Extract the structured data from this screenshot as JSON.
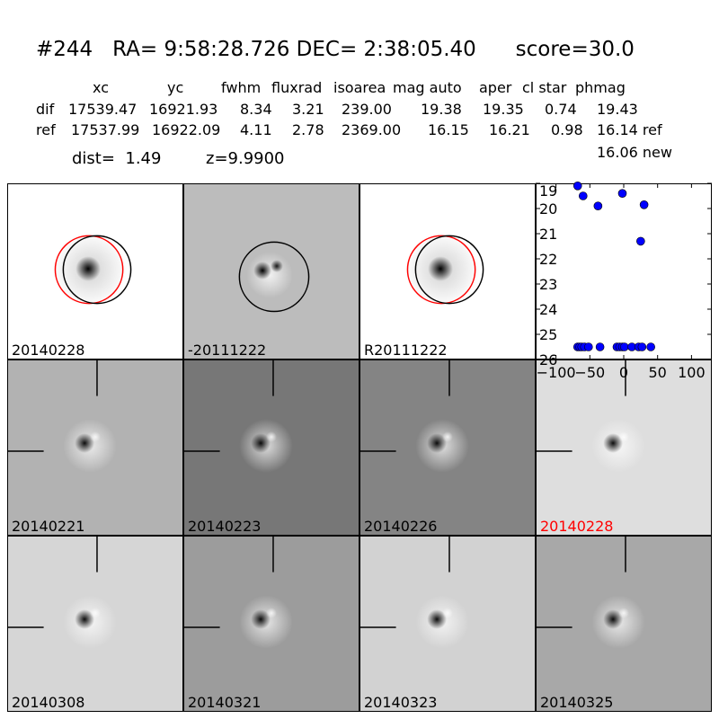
{
  "header": {
    "title": "#244   RA= 9:58:28.726 DEC= 2:38:05.40      score=30.0",
    "columns": [
      "xc",
      "yc",
      "fwhm",
      "fluxrad",
      "isoarea",
      "mag auto",
      "aper",
      "cl star",
      "phmag"
    ],
    "rows": [
      {
        "label": "dif",
        "values": [
          "17539.47",
          "16921.93",
          "8.34",
          "3.21",
          "239.00",
          "19.38",
          "19.35",
          "0.74",
          "19.43"
        ]
      },
      {
        "label": "ref",
        "values": [
          "17537.99",
          "16922.09",
          "4.11",
          "2.78",
          "2369.00",
          "16.15",
          "16.21",
          "0.98",
          "16.14 ref"
        ]
      }
    ],
    "dist": "dist=  1.49",
    "z": "z=9.9900",
    "new_mag": "16.06 new"
  },
  "panels": [
    {
      "label": "20140228",
      "bg": "#ffffff",
      "highlight": false
    },
    {
      "label": "-20111222",
      "bg": "#bcbcbc",
      "highlight": false
    },
    {
      "label": "R20111222",
      "bg": "#ffffff",
      "highlight": false
    },
    {
      "label": "20140221",
      "bg": "#b2b2b2",
      "highlight": false
    },
    {
      "label": "20140223",
      "bg": "#777777",
      "highlight": false
    },
    {
      "label": "20140226",
      "bg": "#848484",
      "highlight": false
    },
    {
      "label": "20140228",
      "bg": "#dedede",
      "highlight": true
    },
    {
      "label": "20140308",
      "bg": "#d6d6d6",
      "highlight": false
    },
    {
      "label": "20140321",
      "bg": "#9c9c9c",
      "highlight": false
    },
    {
      "label": "20140323",
      "bg": "#d2d2d2",
      "highlight": false
    },
    {
      "label": "20140325",
      "bg": "#a8a8a8",
      "highlight": false
    }
  ],
  "colors": {
    "highlight_label": "#ff0000",
    "point": "#0000ff",
    "circle_ref": "#ff0000",
    "circle": "#000000"
  },
  "chart_data": {
    "type": "scatter",
    "xlim": [
      -130,
      130
    ],
    "ylim": [
      26,
      19
    ],
    "xticks": [
      -100,
      -50,
      0,
      50,
      100
    ],
    "yticks": [
      19,
      20,
      21,
      22,
      23,
      24,
      25,
      26
    ],
    "xticklabels": [
      "−100",
      "−50",
      "0",
      "50",
      "100"
    ],
    "yticklabels": [
      "19",
      "20",
      "21",
      "22",
      "23",
      "24",
      "25",
      "26"
    ],
    "x": [
      -68,
      -60,
      -38,
      -2,
      30,
      25,
      -68,
      -65,
      -62,
      -58,
      -52,
      -35,
      -10,
      -6,
      -2,
      1,
      12,
      22,
      27,
      40
    ],
    "y": [
      19.1,
      19.5,
      19.9,
      19.4,
      19.85,
      21.3,
      25.5,
      25.5,
      25.5,
      25.5,
      25.5,
      25.5,
      25.5,
      25.5,
      25.5,
      25.5,
      25.5,
      25.5,
      25.5,
      25.5
    ]
  }
}
